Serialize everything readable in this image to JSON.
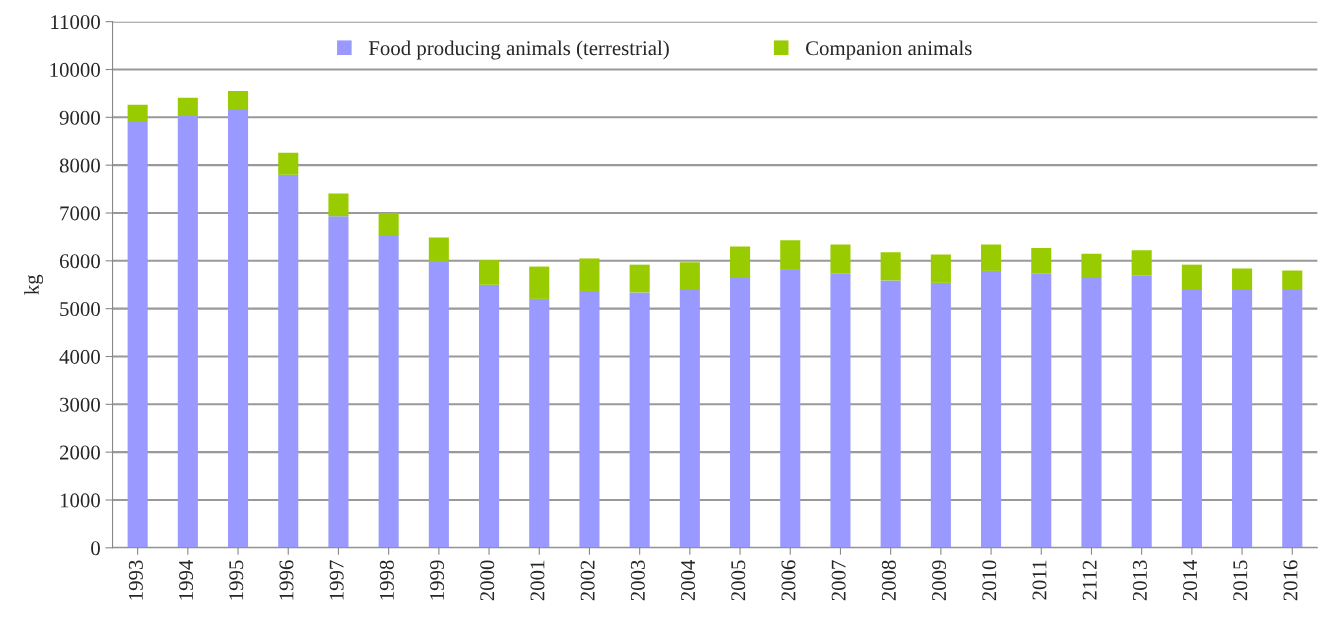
{
  "chart_data": {
    "type": "bar",
    "stacked": true,
    "ylabel": "kg",
    "categories": [
      "1993",
      "1994",
      "1995",
      "1996",
      "1997",
      "1998",
      "1999",
      "2000",
      "2001",
      "2002",
      "2003",
      "2004",
      "2005",
      "2006",
      "2007",
      "2008",
      "2009",
      "2010",
      "2011",
      "2112",
      "2013",
      "2014",
      "2015",
      "2016"
    ],
    "series": [
      {
        "name": "Food producing animals (terrestrial)",
        "color": "#9999ff",
        "values": [
          8925,
          9050,
          9155,
          7800,
          6930,
          6520,
          5990,
          5500,
          5205,
          5370,
          5340,
          5410,
          5660,
          5810,
          5740,
          5590,
          5540,
          5790,
          5730,
          5640,
          5700,
          5410,
          5410,
          5410
        ]
      },
      {
        "name": "Companion animals",
        "color": "#99cc00",
        "values": [
          340,
          360,
          395,
          460,
          475,
          480,
          500,
          515,
          675,
          680,
          580,
          560,
          640,
          620,
          600,
          590,
          590,
          550,
          540,
          510,
          520,
          510,
          430,
          390
        ]
      }
    ],
    "ylim": [
      0,
      11000
    ],
    "yticks": [
      0,
      1000,
      2000,
      3000,
      4000,
      5000,
      6000,
      7000,
      8000,
      9000,
      10000,
      11000
    ],
    "grid": "y",
    "legend": "top"
  }
}
